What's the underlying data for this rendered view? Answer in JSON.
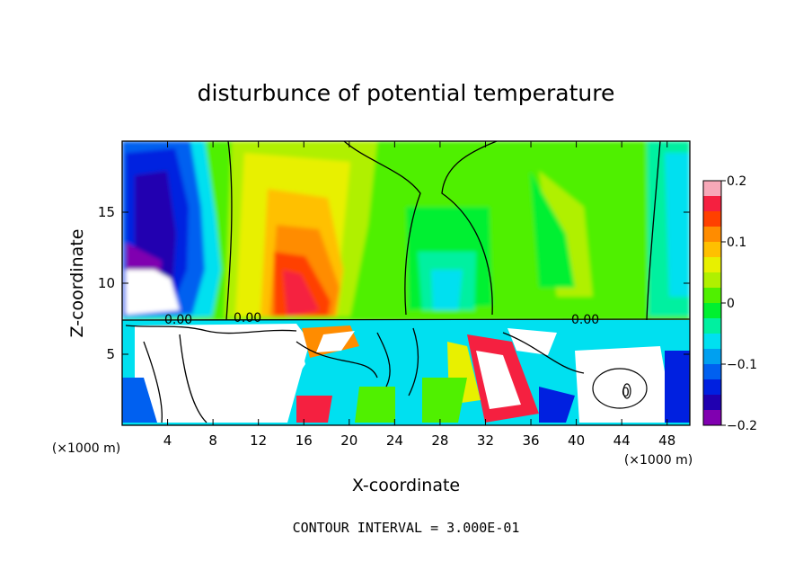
{
  "chart_data": {
    "type": "heatmap",
    "title": "disturbunce of potential temperature",
    "xlabel": "X-coordinate",
    "ylabel": "Z-coordinate",
    "x_unit": "(×1000 m)",
    "x_ticks": [
      4,
      8,
      12,
      16,
      20,
      24,
      28,
      32,
      36,
      40,
      44,
      48
    ],
    "y_ticks": [
      5,
      10,
      15
    ],
    "xlim": [
      0,
      50
    ],
    "ylim": [
      0,
      20
    ],
    "colorbar": {
      "min": -0.2,
      "max": 0.2,
      "tick_labels": [
        "0.2",
        "0.1",
        "0",
        "−0.1",
        "−0.2"
      ],
      "tick_values": [
        0.2,
        0.1,
        0,
        -0.1,
        -0.2
      ],
      "colors": [
        "#f7a8b8",
        "#f52040",
        "#ff4000",
        "#ff8c00",
        "#ffc000",
        "#e8f000",
        "#b0f000",
        "#50f000",
        "#00f030",
        "#00f0a0",
        "#00e0f0",
        "#00a0f0",
        "#0060f0",
        "#0020e0",
        "#2000b0",
        "#8000b0"
      ]
    },
    "contour_labels": [
      "0.00",
      "0.00",
      "0.00",
      "0"
    ],
    "contour_interval": "CONTOUR INTERVAL = 3.000E-01"
  }
}
